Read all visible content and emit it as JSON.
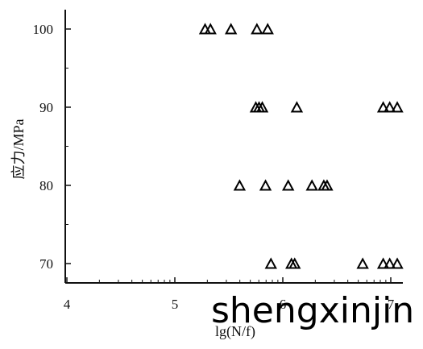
{
  "chart_data": {
    "type": "scatter",
    "xlabel": "lg(N/f)",
    "ylabel": "应力/MPa",
    "x_ticks": [
      "4",
      "5",
      "6",
      "7"
    ],
    "y_ticks": [
      "70",
      "80",
      "90",
      "100"
    ],
    "xlim": [
      4,
      7.1
    ],
    "ylim": [
      67.5,
      102.5
    ],
    "x_scale": "linear",
    "grid": false,
    "marker": "triangle",
    "points": [
      {
        "x": 5.28,
        "y": 100
      },
      {
        "x": 5.33,
        "y": 100
      },
      {
        "x": 5.52,
        "y": 100
      },
      {
        "x": 5.76,
        "y": 100
      },
      {
        "x": 5.86,
        "y": 100
      },
      {
        "x": 5.75,
        "y": 90
      },
      {
        "x": 5.78,
        "y": 90
      },
      {
        "x": 5.81,
        "y": 90
      },
      {
        "x": 6.13,
        "y": 90
      },
      {
        "x": 6.93,
        "y": 90
      },
      {
        "x": 6.99,
        "y": 90
      },
      {
        "x": 7.06,
        "y": 90
      },
      {
        "x": 5.6,
        "y": 80
      },
      {
        "x": 5.84,
        "y": 80
      },
      {
        "x": 6.05,
        "y": 80
      },
      {
        "x": 6.27,
        "y": 80
      },
      {
        "x": 6.38,
        "y": 80
      },
      {
        "x": 6.41,
        "y": 80
      },
      {
        "x": 5.89,
        "y": 70
      },
      {
        "x": 6.08,
        "y": 70
      },
      {
        "x": 6.11,
        "y": 70
      },
      {
        "x": 6.74,
        "y": 70
      },
      {
        "x": 6.93,
        "y": 70
      },
      {
        "x": 6.99,
        "y": 70
      },
      {
        "x": 7.06,
        "y": 70
      }
    ]
  },
  "watermark": "shengxinjin"
}
